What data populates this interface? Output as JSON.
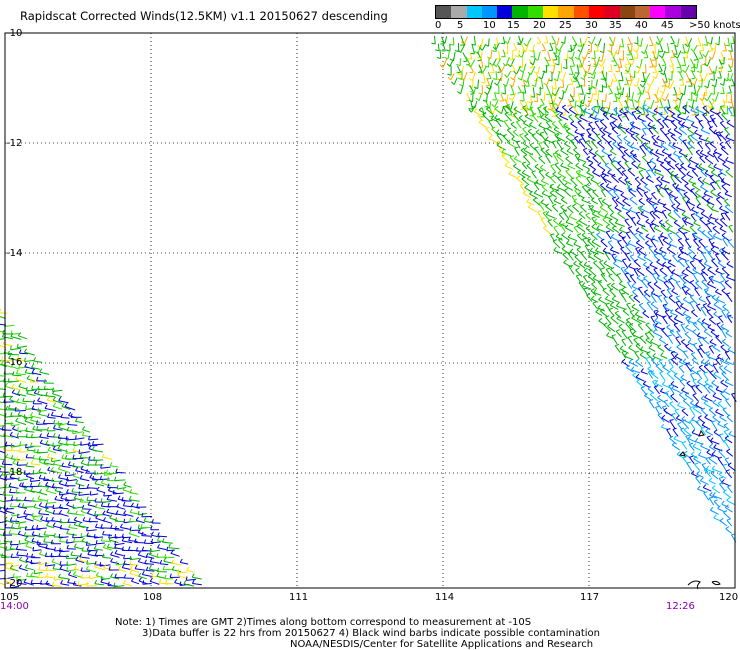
{
  "title": "Rapidscat Corrected Winds(12.5KM) v1.1 20150627 descending",
  "legend": {
    "colors": [
      "#555555",
      "#aaaaaa",
      "#00c8ff",
      "#0096ff",
      "#0000dc",
      "#00b400",
      "#33dd00",
      "#ffe000",
      "#ffa500",
      "#ff5000",
      "#ff0000",
      "#dd0022",
      "#8b4513",
      "#bb6633",
      "#ff00ff",
      "#aa00dd",
      "#6600aa"
    ],
    "labels": [
      "0",
      "5",
      "10",
      "15",
      "20",
      "25",
      "30",
      "35",
      "40",
      "45",
      ">50 knots"
    ],
    "unit": "knots"
  },
  "grid": {
    "latitudes": [
      "-10",
      "-12",
      "-14",
      "-16",
      "-18",
      "-20"
    ],
    "longitudes": [
      "105",
      "108",
      "111",
      "114",
      "117",
      "120"
    ]
  },
  "times": {
    "left": "14:00",
    "right": "12:26"
  },
  "footer": {
    "note_line1": "Note: 1) Times are GMT 2)Times along bottom correspond to measurement at -10S",
    "note_line2": "3)Data buffer is 22 hrs from 20150627 4) Black wind barbs indicate possible contamination",
    "credit": "NOAA/NESDIS/Center for Satellite Applications and Research"
  }
}
